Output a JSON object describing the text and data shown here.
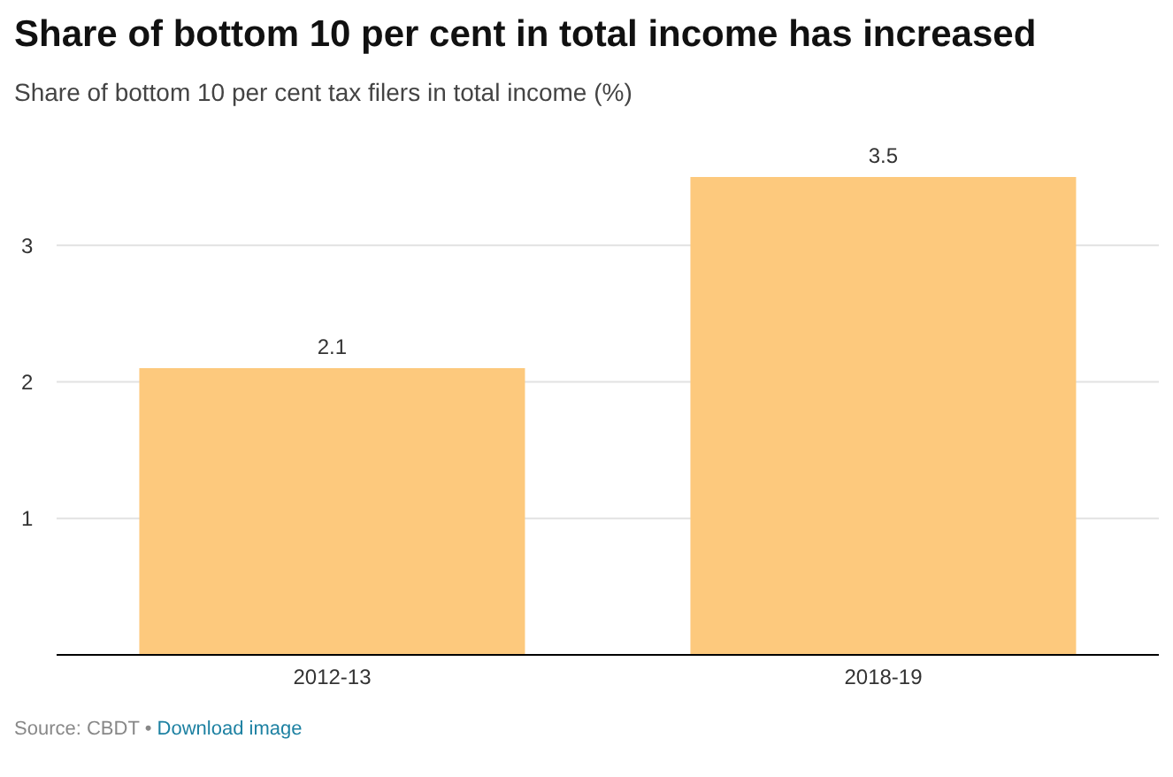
{
  "chart_data": {
    "type": "bar",
    "title": "Share of bottom 10 per cent in total income has increased",
    "subtitle": "Share of bottom 10 per cent tax filers in total income (%)",
    "categories": [
      "2012-13",
      "2018-19"
    ],
    "values": [
      2.1,
      3.5
    ],
    "color": "#fdc97d",
    "data_labels": true,
    "ylim": [
      0,
      3.5
    ],
    "yticks": [
      1,
      2,
      3
    ],
    "grid": "y",
    "legend": false,
    "annotations": [
      "Source: CBDT",
      "•",
      "Download image"
    ]
  }
}
